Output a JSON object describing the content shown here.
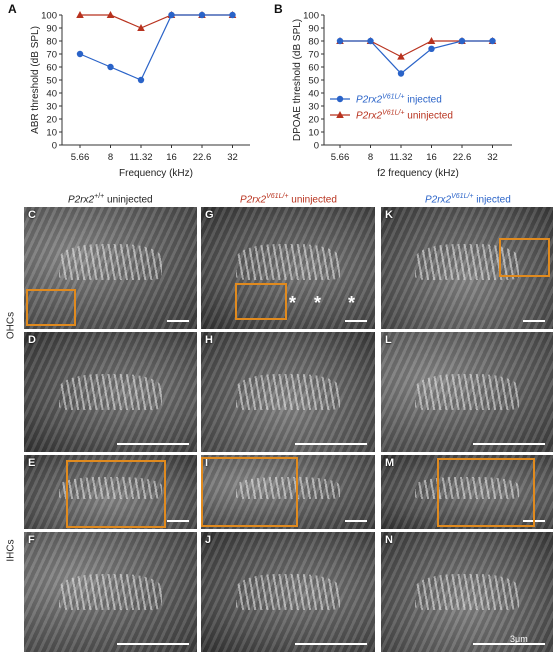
{
  "charts": [
    {
      "type": "line",
      "panel_label": "A",
      "xlabel": "Frequency (kHz)",
      "ylabel": "ABR threshold (dB SPL)",
      "categories": [
        "5.66",
        "8",
        "11.32",
        "16",
        "22.6",
        "32"
      ],
      "ylim": [
        0,
        100
      ],
      "yticks": [
        "0",
        "10",
        "20",
        "30",
        "40",
        "50",
        "60",
        "70",
        "80",
        "90",
        "100"
      ],
      "series": [
        {
          "name": "injected",
          "color": "#2a63c8",
          "marker": "circle",
          "values": [
            70,
            60,
            50,
            100,
            100,
            100
          ]
        },
        {
          "name": "uninjected",
          "color": "#b8321e",
          "marker": "triangle",
          "values": [
            100,
            100,
            90,
            100,
            100,
            100
          ]
        }
      ]
    },
    {
      "type": "line",
      "panel_label": "B",
      "xlabel": "f2 frequency (kHz)",
      "ylabel": "DPOAE threshold (dB SPL)",
      "categories": [
        "5.66",
        "8",
        "11.32",
        "16",
        "22.6",
        "32"
      ],
      "ylim": [
        0,
        100
      ],
      "yticks": [
        "0",
        "10",
        "20",
        "30",
        "40",
        "50",
        "60",
        "70",
        "80",
        "90",
        "100"
      ],
      "legend": [
        {
          "gene": "P2rx2",
          "sup": "V61L/+",
          "rest": " injected",
          "color": "#2a63c8",
          "marker": "circle"
        },
        {
          "gene": "P2rx2",
          "sup": "V61L/+",
          "rest": " uninjected",
          "color": "#b8321e",
          "marker": "triangle"
        }
      ],
      "series": [
        {
          "name": "injected",
          "color": "#2a63c8",
          "marker": "circle",
          "values": [
            80,
            80,
            55,
            74,
            80,
            80
          ]
        },
        {
          "name": "uninjected",
          "color": "#b8321e",
          "marker": "triangle",
          "values": [
            80,
            80,
            68,
            80,
            80,
            80
          ]
        }
      ]
    }
  ],
  "micrographs": {
    "columns": [
      {
        "gene": "P2rx2",
        "sup": "+/+",
        "rest": " uninjected",
        "color": "#222222"
      },
      {
        "gene": "P2rx2",
        "sup": "V61L/+",
        "rest": " uninjected",
        "color": "#b8321e"
      },
      {
        "gene": "P2rx2",
        "sup": "V61L/+",
        "rest": " injected",
        "color": "#2a63c8"
      }
    ],
    "row_labels": {
      "ohc": "OHCs",
      "ihc": "IHCs"
    },
    "panels": [
      "C",
      "G",
      "K",
      "D",
      "H",
      "L",
      "E",
      "I",
      "M",
      "F",
      "J",
      "N"
    ],
    "stars": [
      "*",
      "*",
      "*"
    ],
    "scale_label": "3μm"
  }
}
